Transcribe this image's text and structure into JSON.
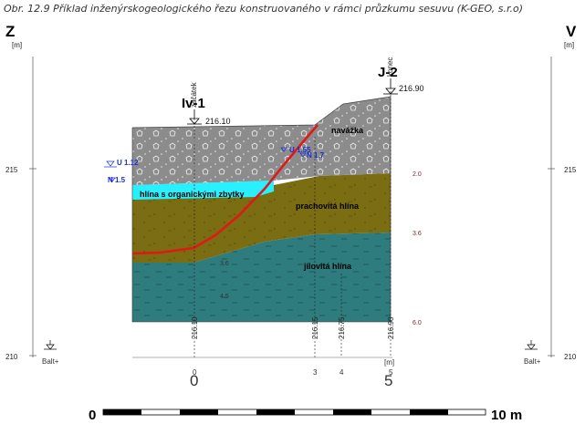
{
  "caption": "Obr. 12.9 Příklad inženýrskogeologického řezu konstruovaného v rámci průzkumu sesuvu (K-GEO, s.r.o)",
  "left_side": "Z",
  "right_side": "V",
  "unit_m": "[m]",
  "axis_labels": {
    "left_215": "215",
    "left_210": "210",
    "right_215": "215",
    "right_210": "210",
    "balt": "Balt+"
  },
  "boreholes": {
    "left": {
      "name": "Iv-1",
      "elevation": "216.10",
      "note": "začátek",
      "bottom": "216.10"
    },
    "right": {
      "name": "J-2",
      "elevation": "216.90",
      "note": "konec",
      "bottom": "216.90"
    }
  },
  "layers": {
    "fill": "navážka",
    "organic": "hlína s organickými zbytky",
    "silty": "prachovitá hlína",
    "clayey": "jílovitá hlína"
  },
  "water_marks": {
    "u1": "U 1.12",
    "n1": "N 1.5",
    "u2": "U 1.55",
    "n2": "N 1.7"
  },
  "depths": {
    "d1": "2.0",
    "d2": "3.6",
    "d3": "6.0",
    "inner_a": "3.6",
    "inner_b": "4.5"
  },
  "mid_verticals": {
    "a": "216.15",
    "b": "216.75"
  },
  "bottom_axis": {
    "unit": "[m]",
    "tick_0": "0",
    "tick_3": "3",
    "tick_4": "4",
    "tick_5": "5",
    "big_0": "0",
    "big_5": "5"
  },
  "scale_bar": {
    "start": "0",
    "end": "10 m"
  },
  "colors": {
    "fill_layer": "#8c8c8c",
    "organic_layer": "#29f0ff",
    "silty_layer": "#7a6d12",
    "clay_layer": "#2e7c7e",
    "slip_surface": "#e01818",
    "water_mark": "#1a2fd0"
  }
}
